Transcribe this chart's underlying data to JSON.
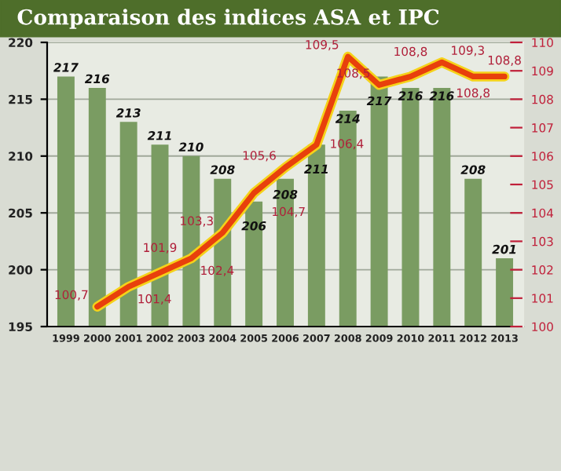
{
  "chart_data": {
    "type": "bar",
    "title": "Comparaison des indices ASA et IPC",
    "categories": [
      "1999",
      "2000",
      "2001",
      "2002",
      "2003",
      "2004",
      "2005",
      "2006",
      "2007",
      "2008",
      "2009",
      "2010",
      "2011",
      "2012",
      "2013"
    ],
    "series": [
      {
        "color": "#7a9c62",
        "values": [
          217,
          216,
          213,
          211,
          210,
          208,
          206,
          208,
          211,
          214,
          217,
          216,
          216,
          208,
          201
        ]
      },
      {
        "type": "line",
        "axis": "y2",
        "color": "#e8400c",
        "values": [
          null,
          100.7,
          101.4,
          101.9,
          102.4,
          103.3,
          104.7,
          105.6,
          106.4,
          109.5,
          108.5,
          108.8,
          109.3,
          108.8,
          108.8
        ],
        "value_labels": [
          null,
          "100,7",
          "101,4",
          "101,9",
          "102,4",
          "103,3",
          "104,7",
          "105,6",
          "106,4",
          "109,5",
          "108,5",
          "108,8",
          "109,3",
          "108,8",
          "108,8"
        ]
      }
    ],
    "data_labels": true,
    "ylim": [
      195,
      220
    ],
    "yticks": [
      195,
      200,
      205,
      210,
      215,
      220
    ],
    "y2lim": [
      100,
      110
    ],
    "y2ticks": [
      100,
      101,
      102,
      103,
      104,
      105,
      106,
      107,
      108,
      109,
      110
    ],
    "grid": "y",
    "legend": false
  }
}
